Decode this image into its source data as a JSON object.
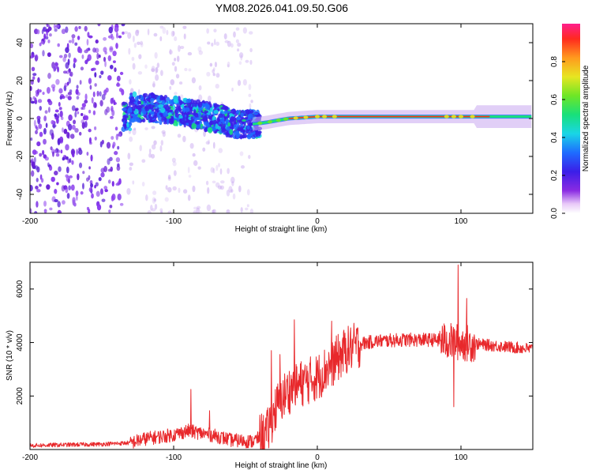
{
  "title": "YM08.2026.041.09.50.G06",
  "chart_data": [
    {
      "type": "heatmap",
      "xlabel": "Height of straight line (km)",
      "ylabel": "Frequency (Hz)",
      "xlim": [
        -200,
        150
      ],
      "ylim": [
        -50,
        50
      ],
      "xticks": [
        -200,
        -100,
        0,
        100
      ],
      "yticks": [
        -40,
        -20,
        0,
        20,
        40
      ],
      "colorbar": {
        "label": "Normalized spectral amplitude",
        "range": [
          0,
          1
        ],
        "ticks": [
          0.0,
          0.2,
          0.4,
          0.6,
          0.8
        ],
        "tick_labels": [
          "0.0",
          "0.2",
          "0.4",
          "0.6",
          "0.8"
        ]
      },
      "description_points": {
        "ridge_freq_hz": [
          {
            "x": -130,
            "y": 6
          },
          {
            "x": -110,
            "y": 5
          },
          {
            "x": -90,
            "y": 3
          },
          {
            "x": -70,
            "y": 0
          },
          {
            "x": -55,
            "y": -3
          },
          {
            "x": -45,
            "y": -3
          },
          {
            "x": -35,
            "y": -2
          },
          {
            "x": -20,
            "y": 0
          },
          {
            "x": 0,
            "y": 1
          },
          {
            "x": 50,
            "y": 1
          },
          {
            "x": 100,
            "y": 1
          },
          {
            "x": 150,
            "y": 1
          }
        ]
      }
    },
    {
      "type": "line",
      "xlabel": "Height of straight line (km)",
      "ylabel": "SNR (10 * v/v)",
      "xlim": [
        -200,
        150
      ],
      "ylim": [
        0,
        7000
      ],
      "xticks": [
        -200,
        -100,
        0,
        100
      ],
      "yticks": [
        2000,
        4000,
        6000
      ],
      "series": [
        {
          "name": "SNR",
          "color": "#e8282b",
          "trend": [
            {
              "x": -200,
              "y": 150
            },
            {
              "x": -150,
              "y": 200
            },
            {
              "x": -130,
              "y": 250
            },
            {
              "x": -120,
              "y": 400
            },
            {
              "x": -100,
              "y": 550
            },
            {
              "x": -90,
              "y": 700
            },
            {
              "x": -80,
              "y": 600
            },
            {
              "x": -70,
              "y": 500
            },
            {
              "x": -60,
              "y": 350
            },
            {
              "x": -45,
              "y": 300
            },
            {
              "x": -35,
              "y": 600
            },
            {
              "x": -30,
              "y": 1400
            },
            {
              "x": -25,
              "y": 1900
            },
            {
              "x": -20,
              "y": 2200
            },
            {
              "x": -10,
              "y": 2500
            },
            {
              "x": 0,
              "y": 2700
            },
            {
              "x": 10,
              "y": 3200
            },
            {
              "x": 20,
              "y": 3700
            },
            {
              "x": 30,
              "y": 3950
            },
            {
              "x": 40,
              "y": 4050
            },
            {
              "x": 60,
              "y": 4100
            },
            {
              "x": 80,
              "y": 4100
            },
            {
              "x": 90,
              "y": 4050
            },
            {
              "x": 100,
              "y": 4000
            },
            {
              "x": 110,
              "y": 3950
            },
            {
              "x": 130,
              "y": 3850
            },
            {
              "x": 150,
              "y": 3750
            }
          ],
          "spikes": [
            {
              "x": -88,
              "y": 2250
            },
            {
              "x": -75,
              "y": 1450
            },
            {
              "x": -32,
              "y": 3700
            },
            {
              "x": -26,
              "y": 3550
            },
            {
              "x": -16,
              "y": 4850
            },
            {
              "x": 10,
              "y": 4800
            },
            {
              "x": 95,
              "y": 1600
            },
            {
              "x": 98,
              "y": 6900
            },
            {
              "x": 104,
              "y": 5650
            }
          ]
        }
      ]
    }
  ]
}
